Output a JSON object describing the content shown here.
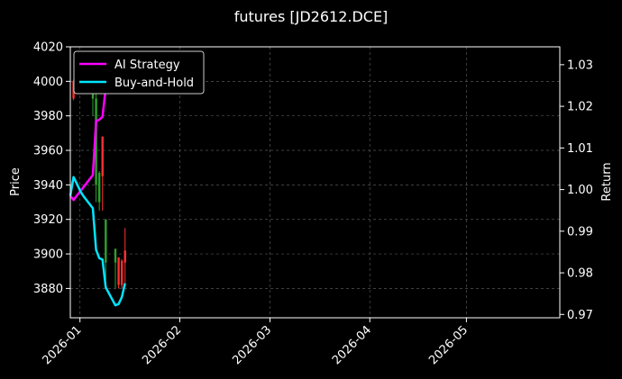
{
  "chart_data": {
    "type": "line",
    "title": "futures [JD2612.DCE]",
    "xlabel": "",
    "ylabel": "Price",
    "y2label": "Return",
    "ylim": [
      3863,
      4020
    ],
    "y2lim": [
      0.9692,
      1.0343
    ],
    "xlim": [
      "2025-12-29",
      "2026-05-30"
    ],
    "xticks": [
      "2026-01",
      "2026-02",
      "2026-03",
      "2026-04",
      "2026-05"
    ],
    "yticks": [
      3880,
      3900,
      3920,
      3940,
      3960,
      3980,
      4000,
      4020
    ],
    "y2ticks": [
      0.97,
      0.98,
      0.99,
      1.0,
      1.01,
      1.02,
      1.03
    ],
    "y2tick_labels": [
      "0.97",
      "0.98",
      "0.99",
      "1.00",
      "1.01",
      "1.02",
      "1.03"
    ],
    "grid": true,
    "legend_position": "top-left",
    "colors": {
      "background": "#000000",
      "up": "#ff3030",
      "down": "#2ca02c",
      "strategy": "#ff00ff",
      "buy_and_hold": "#00e5ff",
      "grid": "#555555"
    },
    "candles": [
      {
        "date": "2025-12-30",
        "open": 3990,
        "close": 4000,
        "high": 4001,
        "low": 3989
      },
      {
        "date": "2026-01-05",
        "open": 4000,
        "close": 3990,
        "high": 4003,
        "low": 3980
      },
      {
        "date": "2026-01-06",
        "open": 3990,
        "close": 3940,
        "high": 3995,
        "low": 3930
      },
      {
        "date": "2026-01-07",
        "open": 3947,
        "close": 3930,
        "high": 3948,
        "low": 3925
      },
      {
        "date": "2026-01-08",
        "open": 3945,
        "close": 3968,
        "high": 3968,
        "low": 3925
      },
      {
        "date": "2026-01-09",
        "open": 3920,
        "close": 3895,
        "high": 3920,
        "low": 3885
      },
      {
        "date": "2026-01-12",
        "open": 3903,
        "close": 3895,
        "high": 3903,
        "low": 3880
      },
      {
        "date": "2026-01-13",
        "open": 3882,
        "close": 3898,
        "high": 3898,
        "low": 3880
      },
      {
        "date": "2026-01-14",
        "open": 3882,
        "close": 3896,
        "high": 3897,
        "low": 3880
      },
      {
        "date": "2026-01-15",
        "open": 3895,
        "close": 3902,
        "high": 3915,
        "low": 3883
      }
    ],
    "series": [
      {
        "name": "AI Strategy",
        "x": [
          "2025-12-29",
          "2025-12-30",
          "2025-12-31",
          "2026-01-01",
          "2026-01-02",
          "2026-01-05",
          "2026-01-06",
          "2026-01-07",
          "2026-01-08",
          "2026-01-09",
          "2026-01-12",
          "2026-01-13"
        ],
        "values": [
          0.9985,
          0.9975,
          0.9985,
          0.9995,
          1.0005,
          1.0035,
          1.0165,
          1.0168,
          1.0175,
          1.0245,
          1.0305,
          1.0322
        ]
      },
      {
        "name": "Buy-and-Hold",
        "x": [
          "2025-12-29",
          "2025-12-30",
          "2025-12-31",
          "2026-01-01",
          "2026-01-02",
          "2026-01-05",
          "2026-01-06",
          "2026-01-07",
          "2026-01-08",
          "2026-01-09",
          "2026-01-12",
          "2026-01-13",
          "2026-01-14",
          "2026-01-15"
        ],
        "values": [
          0.9985,
          1.003,
          1.0015,
          0.9998,
          0.9985,
          0.9955,
          0.9855,
          0.9835,
          0.9832,
          0.9765,
          0.9722,
          0.9725,
          0.9742,
          0.9775
        ]
      }
    ]
  }
}
